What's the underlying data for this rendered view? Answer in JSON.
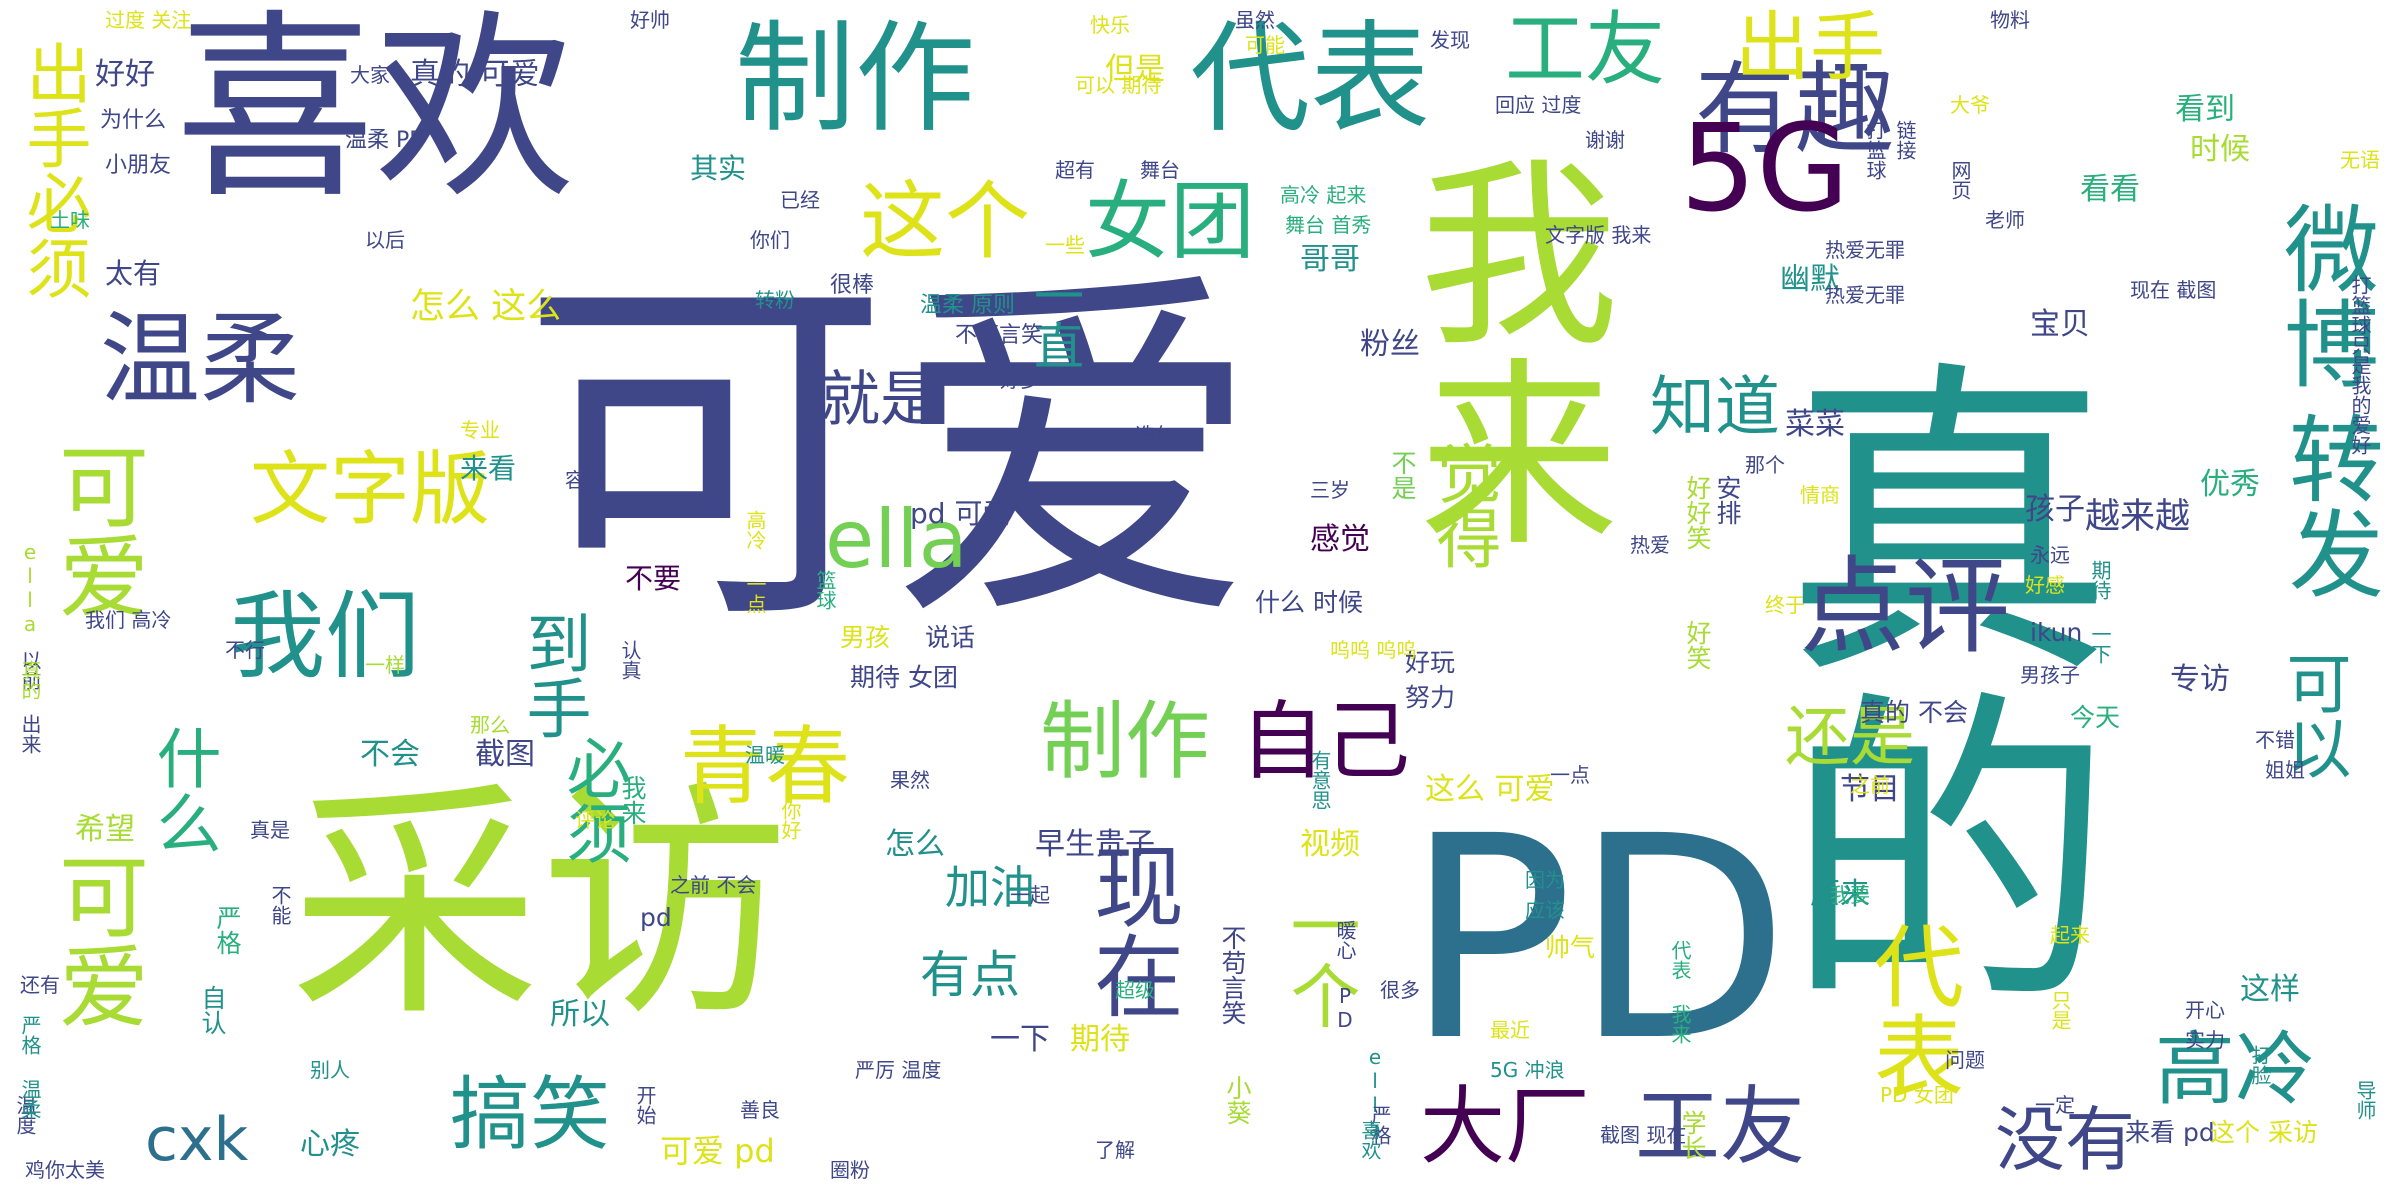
{
  "palette": {
    "c0": "#440154",
    "c1": "#3f4788",
    "c2": "#2d708e",
    "c3": "#21918c",
    "c4": "#29af7f",
    "c5": "#73d055",
    "c6": "#a8db34",
    "c7": "#dde318"
  },
  "words": [
    {
      "text": "可爱",
      "color": "c1"
    },
    {
      "text": "真的",
      "color": "c3"
    },
    {
      "text": "采访",
      "color": "c6"
    },
    {
      "text": "喜欢",
      "color": "c1"
    },
    {
      "text": "PD",
      "color": "c2"
    },
    {
      "text": "我来",
      "color": "c6"
    },
    {
      "text": "制作",
      "color": "c3"
    },
    {
      "text": "代表",
      "color": "c3"
    },
    {
      "text": "有趣",
      "color": "c1"
    },
    {
      "text": "5G",
      "color": "c0"
    },
    {
      "text": "工友",
      "color": "c4"
    },
    {
      "text": "出手",
      "color": "c7"
    },
    {
      "text": "温柔",
      "color": "c1"
    },
    {
      "text": "这个",
      "color": "c7"
    },
    {
      "text": "女团",
      "color": "c4"
    },
    {
      "text": "微博",
      "color": "c3"
    },
    {
      "text": "转发",
      "color": "c3"
    },
    {
      "text": "点评",
      "color": "c1"
    },
    {
      "text": "我们",
      "color": "c3"
    },
    {
      "text": "ella",
      "color": "c5"
    },
    {
      "text": "文字版",
      "color": "c7"
    },
    {
      "text": "青春",
      "color": "c7"
    },
    {
      "text": "制作",
      "color": "c5"
    },
    {
      "text": "自己",
      "color": "c0"
    },
    {
      "text": "现在",
      "color": "c1"
    },
    {
      "text": "代表",
      "color": "c7"
    },
    {
      "text": "大厂",
      "color": "c0"
    },
    {
      "text": "工友",
      "color": "c1"
    },
    {
      "text": "高冷",
      "color": "c3"
    },
    {
      "text": "没有",
      "color": "c1"
    },
    {
      "text": "搞笑",
      "color": "c3"
    },
    {
      "text": "cxk",
      "color": "c2"
    },
    {
      "text": "可爱",
      "color": "c6"
    },
    {
      "text": "可爱",
      "color": "c6"
    },
    {
      "text": "出手必须",
      "color": "c7"
    },
    {
      "text": "知道",
      "color": "c3"
    },
    {
      "text": "觉得",
      "color": "c6"
    },
    {
      "text": "还是",
      "color": "c6"
    },
    {
      "text": "就是",
      "color": "c1"
    },
    {
      "text": "可以",
      "color": "c3"
    },
    {
      "text": "一个",
      "color": "c6"
    },
    {
      "text": "什么",
      "color": "c4"
    },
    {
      "text": "必须",
      "color": "c4"
    },
    {
      "text": "到手",
      "color": "c3"
    },
    {
      "text": "一直",
      "color": "c3"
    },
    {
      "text": "有点",
      "color": "c3"
    },
    {
      "text": "加油",
      "color": "c3"
    },
    {
      "text": "过度 关注",
      "color": "c7"
    },
    {
      "text": "好好",
      "color": "c1"
    },
    {
      "text": "真的 可爱",
      "color": "c1"
    },
    {
      "text": "其实",
      "color": "c3"
    },
    {
      "text": "太有",
      "color": "c1"
    },
    {
      "text": "但是",
      "color": "c7"
    },
    {
      "text": "怎么 这么",
      "color": "c7"
    },
    {
      "text": "哥哥",
      "color": "c3"
    },
    {
      "text": "粉丝",
      "color": "c1"
    },
    {
      "text": "幽默",
      "color": "c3"
    },
    {
      "text": "菜菜",
      "color": "c1"
    },
    {
      "text": "宝贝",
      "color": "c1"
    },
    {
      "text": "看到",
      "color": "c4"
    },
    {
      "text": "时候",
      "color": "c6"
    },
    {
      "text": "看看",
      "color": "c4"
    },
    {
      "text": "优秀",
      "color": "c4"
    },
    {
      "text": "孩子",
      "color": "c1"
    },
    {
      "text": "越来越",
      "color": "c1"
    },
    {
      "text": "感觉",
      "color": "c0"
    },
    {
      "text": "不要",
      "color": "c0"
    },
    {
      "text": "来看",
      "color": "c3"
    },
    {
      "text": "pd 可爱",
      "color": "c1"
    },
    {
      "text": "不会",
      "color": "c3"
    },
    {
      "text": "截图",
      "color": "c1"
    },
    {
      "text": "这么 可爱",
      "color": "c7"
    },
    {
      "text": "节目",
      "color": "c1"
    },
    {
      "text": "视频",
      "color": "c7"
    },
    {
      "text": "早生贵子",
      "color": "c1"
    },
    {
      "text": "怎么",
      "color": "c3"
    },
    {
      "text": "希望",
      "color": "c6"
    },
    {
      "text": "原来",
      "color": "c3"
    },
    {
      "text": "所以",
      "color": "c3"
    },
    {
      "text": "一下",
      "color": "c1"
    },
    {
      "text": "期待",
      "color": "c7"
    },
    {
      "text": "可爱 pd",
      "color": "c7"
    },
    {
      "text": "心疼",
      "color": "c3"
    },
    {
      "text": "这样",
      "color": "c3"
    },
    {
      "text": "专访",
      "color": "c1"
    },
    {
      "text": "ikun",
      "color": "c1"
    },
    {
      "text": "不苟言笑",
      "color": "c1"
    },
    {
      "text": "小葵",
      "color": "c6"
    },
    {
      "text": "学长",
      "color": "c6"
    },
    {
      "text": "好笑",
      "color": "c6"
    },
    {
      "text": "好好笑",
      "color": "c6"
    },
    {
      "text": "安排",
      "color": "c1"
    },
    {
      "text": "不是",
      "color": "c5"
    },
    {
      "text": "严格",
      "color": "c4"
    },
    {
      "text": "自认",
      "color": "c3"
    },
    {
      "text": "我来",
      "color": "c4"
    },
    {
      "text": "pd",
      "color": "c1"
    },
    {
      "text": "男孩",
      "color": "c7"
    },
    {
      "text": "说话",
      "color": "c1"
    },
    {
      "text": "期待 女团",
      "color": "c1"
    },
    {
      "text": "什么 时候",
      "color": "c1"
    },
    {
      "text": "努力",
      "color": "c1"
    },
    {
      "text": "好玩",
      "color": "c1"
    },
    {
      "text": "呜呜 呜呜",
      "color": "c7"
    },
    {
      "text": "三岁",
      "color": "c1"
    },
    {
      "text": "热爱",
      "color": "c1"
    },
    {
      "text": "那个",
      "color": "c1"
    },
    {
      "text": "情商",
      "color": "c7"
    },
    {
      "text": "永远",
      "color": "c1"
    },
    {
      "text": "终于",
      "color": "c7"
    },
    {
      "text": "真的 不会",
      "color": "c1"
    },
    {
      "text": "今天",
      "color": "c4"
    },
    {
      "text": "男孩子",
      "color": "c1"
    },
    {
      "text": "不错",
      "color": "c1"
    },
    {
      "text": "姐姐",
      "color": "c1"
    },
    {
      "text": "之前",
      "color": "c7"
    },
    {
      "text": "我要",
      "color": "c4"
    },
    {
      "text": "帅气",
      "color": "c7"
    },
    {
      "text": "因为",
      "color": "c3"
    },
    {
      "text": "应该",
      "color": "c3"
    },
    {
      "text": "很多",
      "color": "c1"
    },
    {
      "text": "超级",
      "color": "c4"
    },
    {
      "text": "最近",
      "color": "c7"
    },
    {
      "text": "5G 冲浪",
      "color": "c3"
    },
    {
      "text": "代表 我来",
      "color": "c4"
    },
    {
      "text": "起来",
      "color": "c7"
    },
    {
      "text": "开心",
      "color": "c1"
    },
    {
      "text": "实力",
      "color": "c1"
    },
    {
      "text": "打脸",
      "color": "c3"
    },
    {
      "text": "导师",
      "color": "c3"
    },
    {
      "text": "来看 pd",
      "color": "c1"
    },
    {
      "text": "这个 采访",
      "color": "c7"
    },
    {
      "text": "截图 现在",
      "color": "c1"
    },
    {
      "text": "善良",
      "color": "c1"
    },
    {
      "text": "严厉 温度",
      "color": "c1"
    },
    {
      "text": "开始",
      "color": "c1"
    },
    {
      "text": "了解",
      "color": "c1"
    },
    {
      "text": "圈粉",
      "color": "c1"
    },
    {
      "text": "鸡你太美",
      "color": "c1"
    },
    {
      "text": "温度",
      "color": "c1"
    },
    {
      "text": "别人",
      "color": "c3"
    },
    {
      "text": "还有",
      "color": "c1"
    },
    {
      "text": "严格 温柔",
      "color": "c3"
    },
    {
      "text": "不能",
      "color": "c1"
    },
    {
      "text": "真是",
      "color": "c1"
    },
    {
      "text": "一起",
      "color": "c1"
    },
    {
      "text": "不行",
      "color": "c1"
    },
    {
      "text": "那么",
      "color": "c6"
    },
    {
      "text": "一样",
      "color": "c6"
    },
    {
      "text": "我们 高冷",
      "color": "c1"
    },
    {
      "text": "以前 出来",
      "color": "c1"
    },
    {
      "text": "ella 真的",
      "color": "c6"
    },
    {
      "text": "认真",
      "color": "c1"
    },
    {
      "text": "篮球",
      "color": "c4"
    },
    {
      "text": "容易",
      "color": "c1"
    },
    {
      "text": "专业",
      "color": "c7"
    },
    {
      "text": "土味",
      "color": "c4"
    },
    {
      "text": "以后",
      "color": "c1"
    },
    {
      "text": "温柔 PD",
      "color": "c1"
    },
    {
      "text": "小朋友",
      "color": "c1"
    },
    {
      "text": "为什么",
      "color": "c1"
    },
    {
      "text": "大家",
      "color": "c1"
    },
    {
      "text": "好帅",
      "color": "c1"
    },
    {
      "text": "已经",
      "color": "c1"
    },
    {
      "text": "你们",
      "color": "c1"
    },
    {
      "text": "很棒",
      "color": "c1"
    },
    {
      "text": "转粉",
      "color": "c3"
    },
    {
      "text": "温柔 原则",
      "color": "c3"
    },
    {
      "text": "不苟言笑",
      "color": "c1"
    },
    {
      "text": "好多",
      "color": "c1"
    },
    {
      "text": "快乐",
      "color": "c7"
    },
    {
      "text": "可以 期待",
      "color": "c7"
    },
    {
      "text": "超有",
      "color": "c1"
    },
    {
      "text": "舞台",
      "color": "c1"
    },
    {
      "text": "虽然",
      "color": "c1"
    },
    {
      "text": "可能",
      "color": "c7"
    },
    {
      "text": "高冷 起来",
      "color": "c4"
    },
    {
      "text": "舞台 首秀",
      "color": "c4"
    },
    {
      "text": "一些",
      "color": "c7"
    },
    {
      "text": "发现",
      "color": "c1"
    },
    {
      "text": "回应 过度",
      "color": "c1"
    },
    {
      "text": "谢谢",
      "color": "c1"
    },
    {
      "text": "文字版 我来",
      "color": "c1"
    },
    {
      "text": "热爱无罪",
      "color": "c1"
    },
    {
      "text": "现在 截图",
      "color": "c1"
    },
    {
      "text": "老师",
      "color": "c1"
    },
    {
      "text": "物料",
      "color": "c1"
    },
    {
      "text": "大爷",
      "color": "c7"
    },
    {
      "text": "链接",
      "color": "c1"
    },
    {
      "text": "网页",
      "color": "c1"
    },
    {
      "text": "打篮球",
      "color": "c1"
    },
    {
      "text": "无语",
      "color": "c7"
    },
    {
      "text": "热爱无罪",
      "color": "c1"
    },
    {
      "text": "打篮球只是我的爱好",
      "color": "c1"
    },
    {
      "text": "有意思",
      "color": "c3"
    },
    {
      "text": "温暖",
      "color": "c3"
    },
    {
      "text": "果然",
      "color": "c1"
    },
    {
      "text": "评论",
      "color": "c7"
    },
    {
      "text": "之前 不会",
      "color": "c1"
    },
    {
      "text": "你好",
      "color": "c7"
    },
    {
      "text": "暖心 PD",
      "color": "c1"
    },
    {
      "text": "ella",
      "color": "c3"
    },
    {
      "text": "严格",
      "color": "c1"
    },
    {
      "text": "喜欢",
      "color": "c3"
    },
    {
      "text": "PD 女团",
      "color": "c7"
    },
    {
      "text": "一定",
      "color": "c1"
    },
    {
      "text": "问题",
      "color": "c1"
    },
    {
      "text": "只是",
      "color": "c7"
    },
    {
      "text": "一点",
      "color": "c1"
    },
    {
      "text": "高冷 一点",
      "color": "c7"
    },
    {
      "text": "好感",
      "color": "c7"
    },
    {
      "text": "造句",
      "color": "c1"
    },
    {
      "text": "期待 一下",
      "color": "c3"
    }
  ]
}
